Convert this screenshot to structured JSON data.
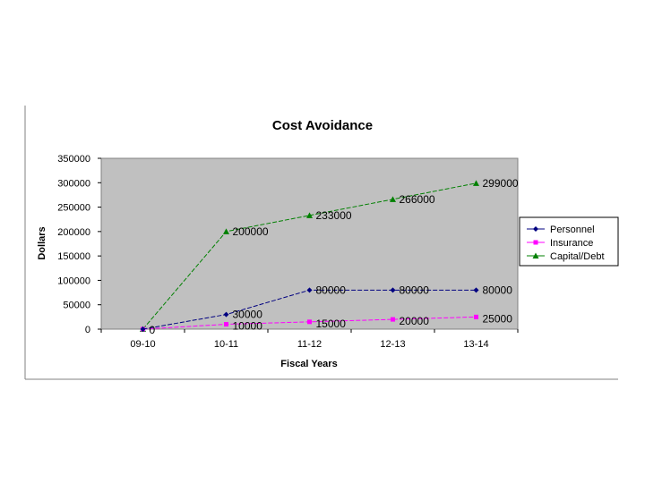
{
  "chart_data": {
    "type": "line",
    "title": "Cost Avoidance",
    "xlabel": "Fiscal Years",
    "ylabel": "Dollars",
    "categories": [
      "09-10",
      "10-11",
      "11-12",
      "12-13",
      "13-14"
    ],
    "ylim": [
      0,
      350000
    ],
    "yticks": [
      0,
      50000,
      100000,
      150000,
      200000,
      250000,
      300000,
      350000
    ],
    "grid": false,
    "legend_position": "right",
    "plot_background": "#c0c0c0",
    "series": [
      {
        "name": "Personnel",
        "values": [
          0,
          30000,
          80000,
          80000,
          80000
        ],
        "labels": [
          "0",
          "30000",
          "80000",
          "80000",
          "80000"
        ],
        "color": "#000080",
        "marker": "diamond"
      },
      {
        "name": "Insurance",
        "values": [
          0,
          10000,
          15000,
          20000,
          25000
        ],
        "labels": [
          "",
          "10000",
          "15000",
          "20000",
          "25000"
        ],
        "color": "#ff00ff",
        "marker": "square"
      },
      {
        "name": "Capital/Debt",
        "values": [
          0,
          200000,
          233000,
          266000,
          299000
        ],
        "labels": [
          "",
          "200000",
          "233000",
          "266000",
          "299000"
        ],
        "color": "#008000",
        "marker": "triangle"
      }
    ]
  }
}
